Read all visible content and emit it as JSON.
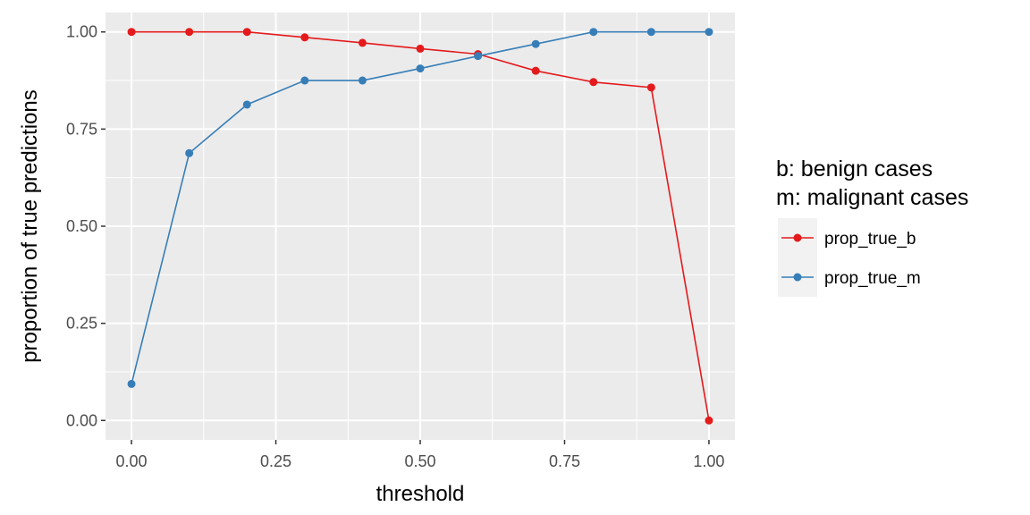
{
  "chart_data": {
    "type": "line",
    "title": "",
    "xlabel": "threshold",
    "ylabel": "proportion of true predictions",
    "xlim": [
      -0.045,
      1.045
    ],
    "ylim": [
      -0.05,
      1.05
    ],
    "x_ticks": [
      0,
      0.25,
      0.5,
      0.75,
      1
    ],
    "x_tick_labels": [
      "0.00",
      "0.25",
      "0.50",
      "0.75",
      "1.00"
    ],
    "y_ticks": [
      0,
      0.25,
      0.5,
      0.75,
      1
    ],
    "y_tick_labels": [
      "0.00",
      "0.25",
      "0.50",
      "0.75",
      "1.00"
    ],
    "grid": true,
    "panel_background": "#ebebeb",
    "legend": {
      "placement": "right",
      "title_lines": [
        "b: benign cases",
        "m: malignant cases"
      ]
    },
    "x": [
      0,
      0.1,
      0.2,
      0.3,
      0.4,
      0.5,
      0.6,
      0.7,
      0.8,
      0.9,
      1.0
    ],
    "series": [
      {
        "name": "prop_true_b",
        "color": "#e41a1c",
        "values": [
          1.0,
          1.0,
          1.0,
          0.986,
          0.972,
          0.957,
          0.943,
          0.9,
          0.871,
          0.857,
          0.0
        ]
      },
      {
        "name": "prop_true_m",
        "color": "#377eb8",
        "values": [
          0.094,
          0.688,
          0.813,
          0.875,
          0.875,
          0.906,
          0.938,
          0.969,
          1.0,
          1.0,
          1.0
        ]
      }
    ]
  }
}
